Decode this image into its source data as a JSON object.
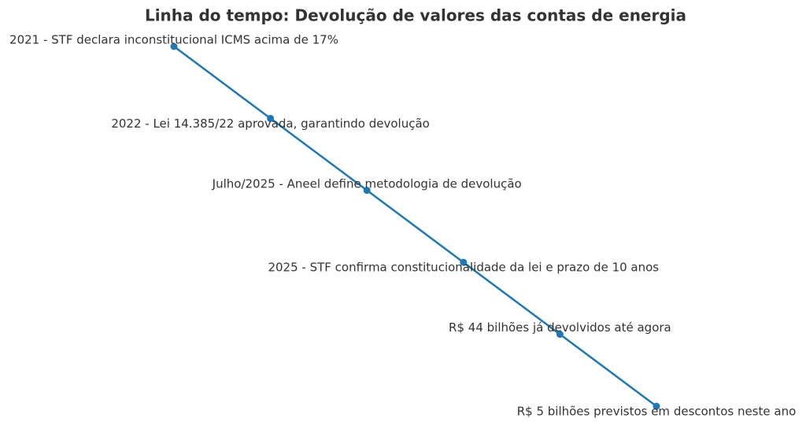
{
  "chart_data": {
    "type": "line",
    "title": "Linha do tempo: Devolução de valores das contas de energia",
    "categories": [
      "2021 - STF declara inconstitucional ICMS acima de 17%",
      "2022 - Lei 14.385/22 aprovada, garantindo devolução",
      "Julho/2025 - Aneel define metodologia de devolução",
      "2025 - STF confirma constitucionalidade da lei e prazo de 10 anos",
      "R$ 44 bilhões já devolvidos até agora",
      "R$ 5 bilhões previstos em descontos neste ano"
    ],
    "values": [
      5,
      4,
      3,
      2,
      1,
      0
    ],
    "ylim": [
      0,
      5
    ],
    "color": "#1f77b4"
  }
}
